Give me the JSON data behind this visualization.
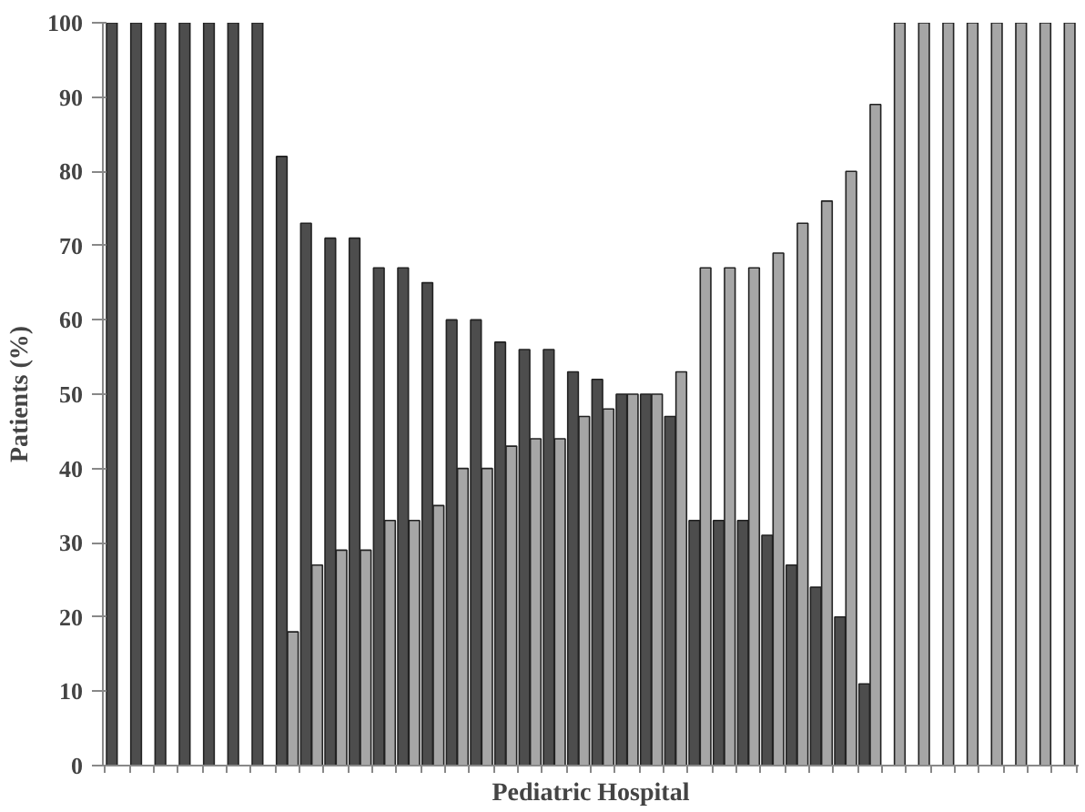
{
  "chart_data": {
    "type": "bar",
    "xlabel": "Pediatric Hospital",
    "ylabel": "Patients (%)",
    "categories": [
      null,
      null,
      null,
      null,
      null,
      null,
      null,
      null,
      null,
      null,
      null,
      null,
      null,
      null,
      null,
      null,
      null,
      null,
      null,
      null,
      null,
      null,
      null,
      null,
      null,
      null,
      null,
      null,
      null,
      null,
      null,
      null,
      null,
      null,
      null,
      null,
      null,
      null,
      null,
      null
    ],
    "series": [
      {
        "color": "#4d4d4d",
        "values": [
          100,
          100,
          100,
          100,
          100,
          100,
          100,
          82,
          73,
          71,
          71,
          67,
          67,
          65,
          60,
          60,
          57,
          56,
          56,
          53,
          52,
          50,
          50,
          47,
          33,
          33,
          33,
          31,
          27,
          24,
          20,
          11,
          null,
          null,
          null,
          null,
          null,
          null,
          null,
          null
        ]
      },
      {
        "color": "#a6a6a6",
        "values": [
          null,
          null,
          null,
          null,
          null,
          null,
          null,
          18,
          27,
          29,
          29,
          33,
          33,
          35,
          40,
          40,
          43,
          44,
          44,
          47,
          48,
          50,
          50,
          53,
          67,
          67,
          67,
          69,
          73,
          76,
          80,
          89,
          100,
          100,
          100,
          100,
          100,
          100,
          100,
          100
        ]
      }
    ],
    "ylim": [
      0,
      100
    ],
    "yticks": [
      0,
      10,
      20,
      30,
      40,
      50,
      60,
      70,
      80,
      90,
      100
    ],
    "grid": false
  }
}
